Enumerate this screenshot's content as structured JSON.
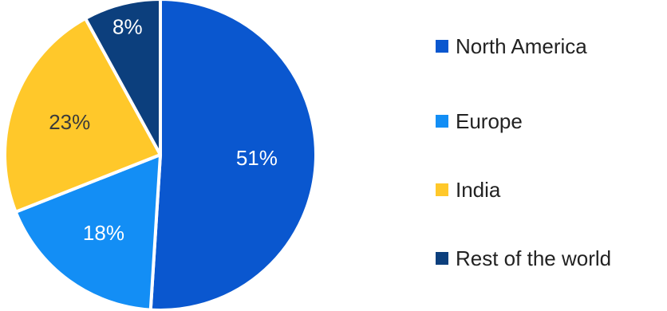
{
  "chart_data": {
    "type": "pie",
    "slices": [
      {
        "label": "North America",
        "value": 51,
        "data_label": "51%",
        "color": "#0a57cf",
        "label_color": "#ffffff"
      },
      {
        "label": "Europe",
        "value": 18,
        "data_label": "18%",
        "color": "#138ef5",
        "label_color": "#ffffff"
      },
      {
        "label": "India",
        "value": 23,
        "data_label": "23%",
        "color": "#ffc82a",
        "label_color": "#3a3a3a"
      },
      {
        "label": "Rest of the world",
        "value": 8,
        "data_label": "8%",
        "color": "#0c3f7d",
        "label_color": "#ffffff"
      }
    ],
    "legend_position": "right",
    "slice_order": "clockwise from top"
  }
}
